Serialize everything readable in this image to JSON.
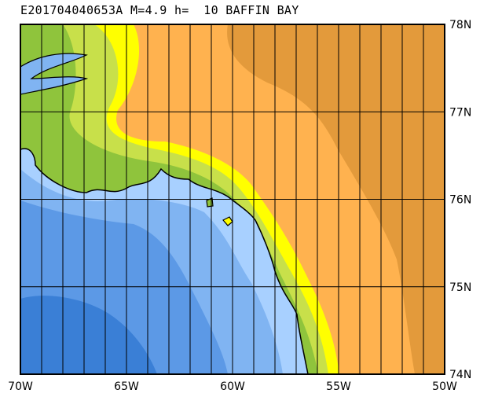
{
  "title": "E201704040653A M=4.9 h=  10 BAFFIN BAY",
  "map": {
    "lon_range": [
      -70,
      -50
    ],
    "lat_range": [
      74,
      78
    ],
    "lon_labels": [
      "70W",
      "65W",
      "60W",
      "55W",
      "50W"
    ],
    "lat_labels": [
      "78N",
      "77N",
      "76N",
      "75N",
      "74N"
    ],
    "grid_lon_step_deg": 1,
    "grid_lat_step_deg": 1
  },
  "colors": {
    "deep_sea": "#3a7fd6",
    "sea": "#5c99e6",
    "shallow_sea": "#80b4f2",
    "shelf": "#a8d0ff",
    "coast_green": "#8fc43c",
    "coast_light": "#c8e04a",
    "yellow": "#ffff00",
    "orange": "#ffb24f",
    "dark_orange": "#e39a3b"
  }
}
